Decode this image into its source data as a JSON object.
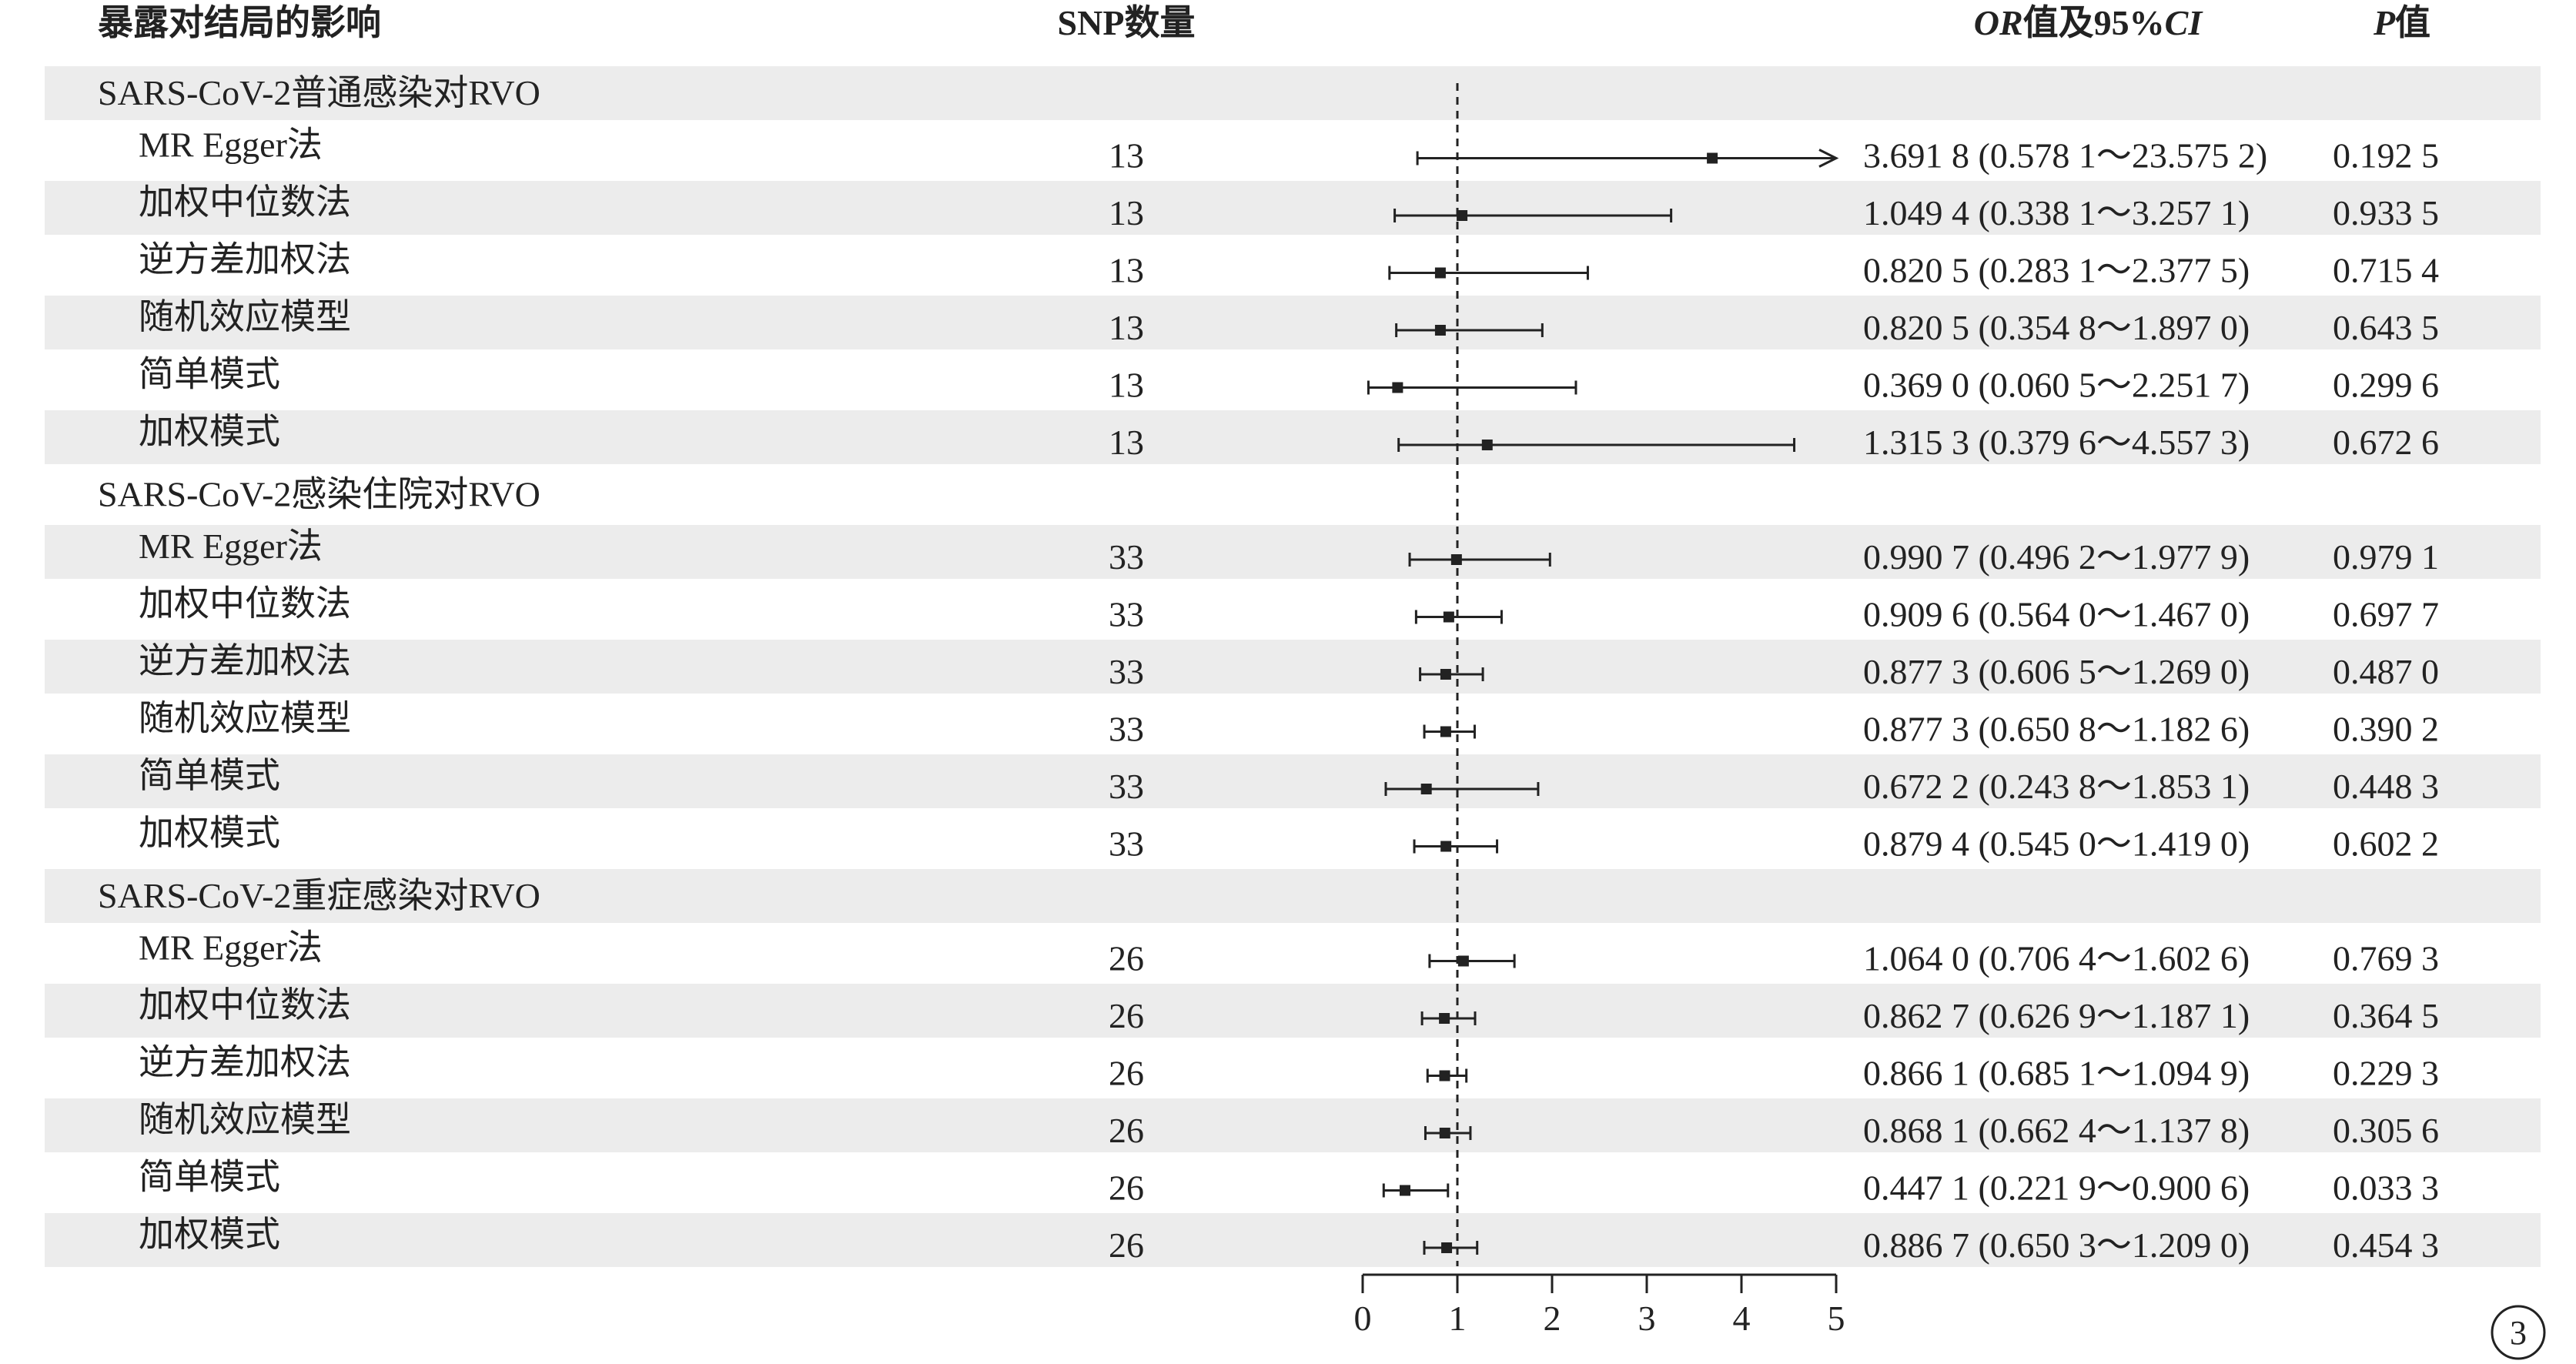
{
  "headers": {
    "exposure": "暴露对结局的影响",
    "snp": "SNP数量",
    "or_italic": "OR",
    "or_rest": "值及95%",
    "ci_italic": "CI",
    "p_italic": "P",
    "p_rest": "值"
  },
  "corner_badge": "3",
  "chart_data": {
    "type": "forest",
    "reference_line": 1,
    "xlim": [
      0,
      5
    ],
    "xticks": [
      0,
      1,
      2,
      3,
      4,
      5
    ],
    "groups": [
      {
        "title": "SARS-CoV-2普通感染对RVO",
        "rows": [
          {
            "method": "MR Egger法",
            "snp": "13",
            "or": 3.6918,
            "lo": 0.5781,
            "hi": 23.5752,
            "or_text": "3.691 8 (0.578 1～23.575 2)",
            "p": "0.192 5"
          },
          {
            "method": "加权中位数法",
            "snp": "13",
            "or": 1.0494,
            "lo": 0.3381,
            "hi": 3.2571,
            "or_text": "1.049 4 (0.338 1～3.257 1)",
            "p": "0.933 5"
          },
          {
            "method": "逆方差加权法",
            "snp": "13",
            "or": 0.8205,
            "lo": 0.2831,
            "hi": 2.3775,
            "or_text": "0.820 5 (0.283 1～2.377 5)",
            "p": "0.715 4"
          },
          {
            "method": "随机效应模型",
            "snp": "13",
            "or": 0.8205,
            "lo": 0.3548,
            "hi": 1.897,
            "or_text": "0.820 5 (0.354 8～1.897 0)",
            "p": "0.643 5"
          },
          {
            "method": "简单模式",
            "snp": "13",
            "or": 0.369,
            "lo": 0.0605,
            "hi": 2.2517,
            "or_text": "0.369 0 (0.060 5～2.251 7)",
            "p": "0.299 6"
          },
          {
            "method": "加权模式",
            "snp": "13",
            "or": 1.3153,
            "lo": 0.3796,
            "hi": 4.5573,
            "or_text": "1.315 3 (0.379 6～4.557 3)",
            "p": "0.672 6"
          }
        ]
      },
      {
        "title": "SARS-CoV-2感染住院对RVO",
        "rows": [
          {
            "method": "MR Egger法",
            "snp": "33",
            "or": 0.9907,
            "lo": 0.4962,
            "hi": 1.9779,
            "or_text": "0.990 7 (0.496 2～1.977 9)",
            "p": "0.979 1"
          },
          {
            "method": "加权中位数法",
            "snp": "33",
            "or": 0.9096,
            "lo": 0.564,
            "hi": 1.467,
            "or_text": "0.909 6 (0.564 0～1.467 0)",
            "p": "0.697 7"
          },
          {
            "method": "逆方差加权法",
            "snp": "33",
            "or": 0.8773,
            "lo": 0.6065,
            "hi": 1.269,
            "or_text": "0.877 3 (0.606 5～1.269 0)",
            "p": "0.487 0"
          },
          {
            "method": "随机效应模型",
            "snp": "33",
            "or": 0.8773,
            "lo": 0.6508,
            "hi": 1.1826,
            "or_text": "0.877 3 (0.650 8～1.182 6)",
            "p": "0.390 2"
          },
          {
            "method": "简单模式",
            "snp": "33",
            "or": 0.6722,
            "lo": 0.2438,
            "hi": 1.8531,
            "or_text": "0.672 2 (0.243 8～1.853 1)",
            "p": "0.448 3"
          },
          {
            "method": "加权模式",
            "snp": "33",
            "or": 0.8794,
            "lo": 0.545,
            "hi": 1.419,
            "or_text": "0.879 4 (0.545 0～1.419 0)",
            "p": "0.602 2"
          }
        ]
      },
      {
        "title": "SARS-CoV-2重症感染对RVO",
        "rows": [
          {
            "method": "MR Egger法",
            "snp": "26",
            "or": 1.064,
            "lo": 0.7064,
            "hi": 1.6026,
            "or_text": "1.064 0 (0.706 4～1.602 6)",
            "p": "0.769 3"
          },
          {
            "method": "加权中位数法",
            "snp": "26",
            "or": 0.8627,
            "lo": 0.6269,
            "hi": 1.1871,
            "or_text": "0.862 7 (0.626 9～1.187 1)",
            "p": "0.364 5"
          },
          {
            "method": "逆方差加权法",
            "snp": "26",
            "or": 0.8661,
            "lo": 0.6851,
            "hi": 1.0949,
            "or_text": "0.866 1 (0.685 1～1.094 9)",
            "p": "0.229 3"
          },
          {
            "method": "随机效应模型",
            "snp": "26",
            "or": 0.8681,
            "lo": 0.6624,
            "hi": 1.1378,
            "or_text": "0.868 1 (0.662 4～1.137 8)",
            "p": "0.305 6"
          },
          {
            "method": "简单模式",
            "snp": "26",
            "or": 0.4471,
            "lo": 0.2219,
            "hi": 0.9006,
            "or_text": "0.447 1 (0.221 9～0.900 6)",
            "p": "0.033 3"
          },
          {
            "method": "加权模式",
            "snp": "26",
            "or": 0.8867,
            "lo": 0.6503,
            "hi": 1.209,
            "or_text": "0.886 7 (0.650 3～1.209 0)",
            "p": "0.454 3"
          }
        ]
      }
    ]
  }
}
